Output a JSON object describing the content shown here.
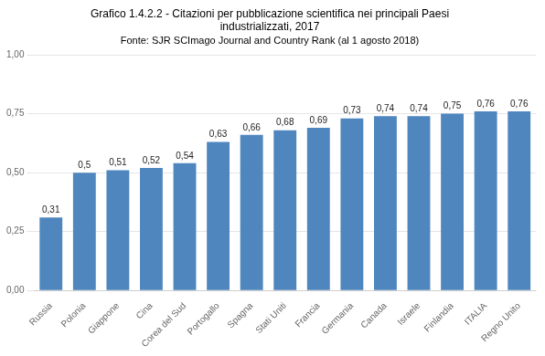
{
  "chart_data": {
    "type": "bar",
    "title": [
      "Grafico 1.4.2.2 - Citazioni per pubblicazione scientifica nei principali Paesi",
      "industrializzati, 2017"
    ],
    "subtitle": "Fonte: SJR SCImago Journal and Country Rank (al 1 agosto 2018)",
    "categories": [
      "Russia",
      "Polonia",
      "Giappone",
      "Cina",
      "Corea del Sud",
      "Portogallo",
      "Spagna",
      "Stati Uniti",
      "Francia",
      "Germania",
      "Canada",
      "Israele",
      "Finlandia",
      "ITALIA",
      "Regno Unito"
    ],
    "values": [
      0.31,
      0.5,
      0.51,
      0.52,
      0.54,
      0.63,
      0.66,
      0.68,
      0.69,
      0.73,
      0.74,
      0.74,
      0.75,
      0.76,
      0.76
    ],
    "value_labels": [
      "0,31",
      "0,5",
      "0,51",
      "0,52",
      "0,54",
      "0,63",
      "0,66",
      "0,68",
      "0,69",
      "0,73",
      "0,74",
      "0,74",
      "0,75",
      "0,76",
      "0,76"
    ],
    "color": "#4f86be",
    "ylim": [
      0,
      1.0
    ],
    "yticks": [
      {
        "value": 0.0,
        "label": "0,00"
      },
      {
        "value": 0.25,
        "label": "0,25"
      },
      {
        "value": 0.5,
        "label": "0,50"
      },
      {
        "value": 0.75,
        "label": "0,75"
      },
      {
        "value": 1.0,
        "label": "1,00"
      }
    ],
    "grid": true,
    "data_labels": true
  }
}
